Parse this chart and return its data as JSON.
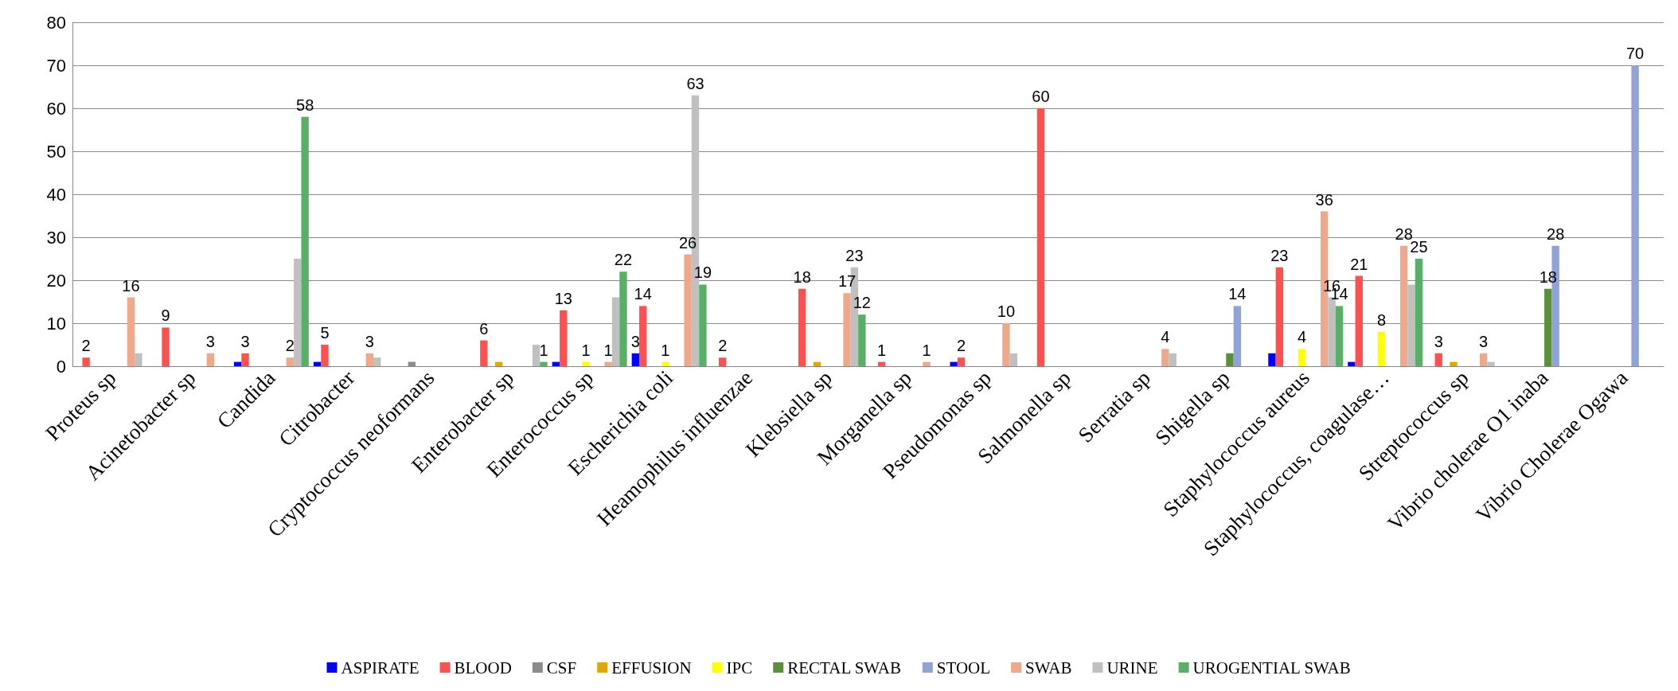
{
  "chart_data": {
    "type": "bar",
    "categories": [
      "Proteus sp",
      "Acinetobacter sp",
      "Candida",
      "Citrobacter",
      "Cryptococcus neoformans",
      "Enterobacter sp",
      "Enterococcus sp",
      "Escherichia coli",
      "Heamophilus influenzae",
      "Klebsiella sp",
      "Morganella sp",
      "Pseudomonas sp",
      "Salmonella sp",
      "Serratia sp",
      "Shigella sp",
      "Staphylococcus aureus",
      "Staphylococcus, coagulase…",
      "Streptococcus sp",
      "Vibrio cholerae O1 inaba",
      "Vibrio Cholerae Ogawa"
    ],
    "series": [
      {
        "name": "ASPIRATE",
        "color": "#0000ff",
        "values": [
          null,
          null,
          1,
          1,
          null,
          null,
          1,
          3,
          null,
          null,
          null,
          1,
          null,
          null,
          null,
          3,
          1,
          null,
          null,
          null
        ],
        "value_labels": [
          null,
          null,
          null,
          null,
          null,
          null,
          null,
          "3",
          null,
          null,
          null,
          null,
          null,
          null,
          null,
          null,
          null,
          null,
          null,
          null
        ]
      },
      {
        "name": "BLOOD",
        "color": "#ff5050",
        "values": [
          2,
          9,
          3,
          5,
          null,
          6,
          13,
          14,
          2,
          18,
          1,
          2,
          60,
          null,
          null,
          23,
          21,
          3,
          null,
          null
        ],
        "value_labels": [
          "2",
          "9",
          "3",
          "5",
          null,
          "6",
          "13",
          "14",
          "2",
          "18",
          "1",
          "2",
          "60",
          null,
          null,
          "23",
          "21",
          "3",
          null,
          null
        ]
      },
      {
        "name": "CSF",
        "color": "#8c8c8c",
        "values": [
          null,
          null,
          null,
          null,
          1,
          null,
          null,
          null,
          null,
          null,
          null,
          null,
          null,
          null,
          null,
          null,
          null,
          null,
          null,
          null
        ]
      },
      {
        "name": "EFFUSION",
        "color": "#e0a800",
        "values": [
          null,
          null,
          null,
          null,
          null,
          1,
          null,
          null,
          null,
          1,
          null,
          null,
          null,
          null,
          null,
          null,
          null,
          1,
          null,
          null
        ]
      },
      {
        "name": "IPC",
        "color": "#ffff00",
        "values": [
          null,
          null,
          null,
          null,
          null,
          null,
          1,
          1,
          null,
          null,
          null,
          null,
          null,
          null,
          null,
          4,
          8,
          null,
          null,
          null
        ],
        "value_labels": [
          null,
          null,
          null,
          null,
          null,
          null,
          "1",
          "1",
          null,
          null,
          null,
          null,
          null,
          null,
          null,
          "4",
          "8",
          null,
          null,
          null
        ]
      },
      {
        "name": "RECTAL SWAB",
        "color": "#5b8f3a",
        "values": [
          null,
          null,
          null,
          null,
          null,
          null,
          null,
          null,
          null,
          null,
          null,
          null,
          null,
          null,
          3,
          null,
          null,
          null,
          18,
          null
        ],
        "value_labels": [
          null,
          null,
          null,
          null,
          null,
          null,
          null,
          null,
          null,
          null,
          null,
          null,
          null,
          null,
          null,
          null,
          null,
          null,
          "18",
          null
        ]
      },
      {
        "name": "STOOL",
        "color": "#8fa3d6",
        "values": [
          null,
          null,
          null,
          null,
          null,
          null,
          null,
          null,
          null,
          null,
          null,
          null,
          null,
          null,
          14,
          null,
          null,
          null,
          28,
          70
        ],
        "value_labels": [
          null,
          null,
          null,
          null,
          null,
          null,
          null,
          null,
          null,
          null,
          null,
          null,
          null,
          null,
          "14",
          null,
          null,
          null,
          "28",
          "70"
        ]
      },
      {
        "name": "SWAB",
        "color": "#f0a88a",
        "values": [
          16,
          3,
          2,
          3,
          null,
          null,
          1,
          26,
          null,
          17,
          1,
          10,
          null,
          4,
          null,
          36,
          28,
          3,
          null,
          null
        ],
        "value_labels": [
          "16",
          "3",
          "2",
          "3",
          null,
          null,
          "1",
          "26",
          null,
          "17",
          "1",
          "10",
          null,
          "4",
          null,
          "36",
          "28",
          "3",
          null,
          null
        ]
      },
      {
        "name": "URINE",
        "color": "#c0c0c0",
        "values": [
          3,
          null,
          25,
          2,
          null,
          5,
          16,
          63,
          null,
          23,
          null,
          3,
          null,
          3,
          null,
          16,
          19,
          1,
          null,
          null
        ],
        "value_labels": [
          null,
          null,
          null,
          null,
          null,
          null,
          null,
          "63",
          null,
          "23",
          null,
          null,
          null,
          null,
          null,
          "16",
          null,
          null,
          null,
          null
        ]
      },
      {
        "name": "UROGENTIAL SWAB",
        "color": "#5aaf66",
        "values": [
          null,
          null,
          58,
          null,
          null,
          1,
          22,
          19,
          null,
          12,
          null,
          null,
          null,
          null,
          null,
          14,
          25,
          null,
          null,
          null
        ],
        "value_labels": [
          null,
          null,
          "58",
          null,
          null,
          "1",
          "22",
          "19",
          null,
          "12",
          null,
          null,
          null,
          null,
          null,
          "14",
          "25",
          null,
          null,
          null
        ]
      }
    ],
    "ylim": [
      0,
      80
    ],
    "yticks": [
      0,
      10,
      20,
      30,
      40,
      50,
      60,
      70,
      80
    ],
    "grid": "y",
    "legend": "bottom"
  }
}
